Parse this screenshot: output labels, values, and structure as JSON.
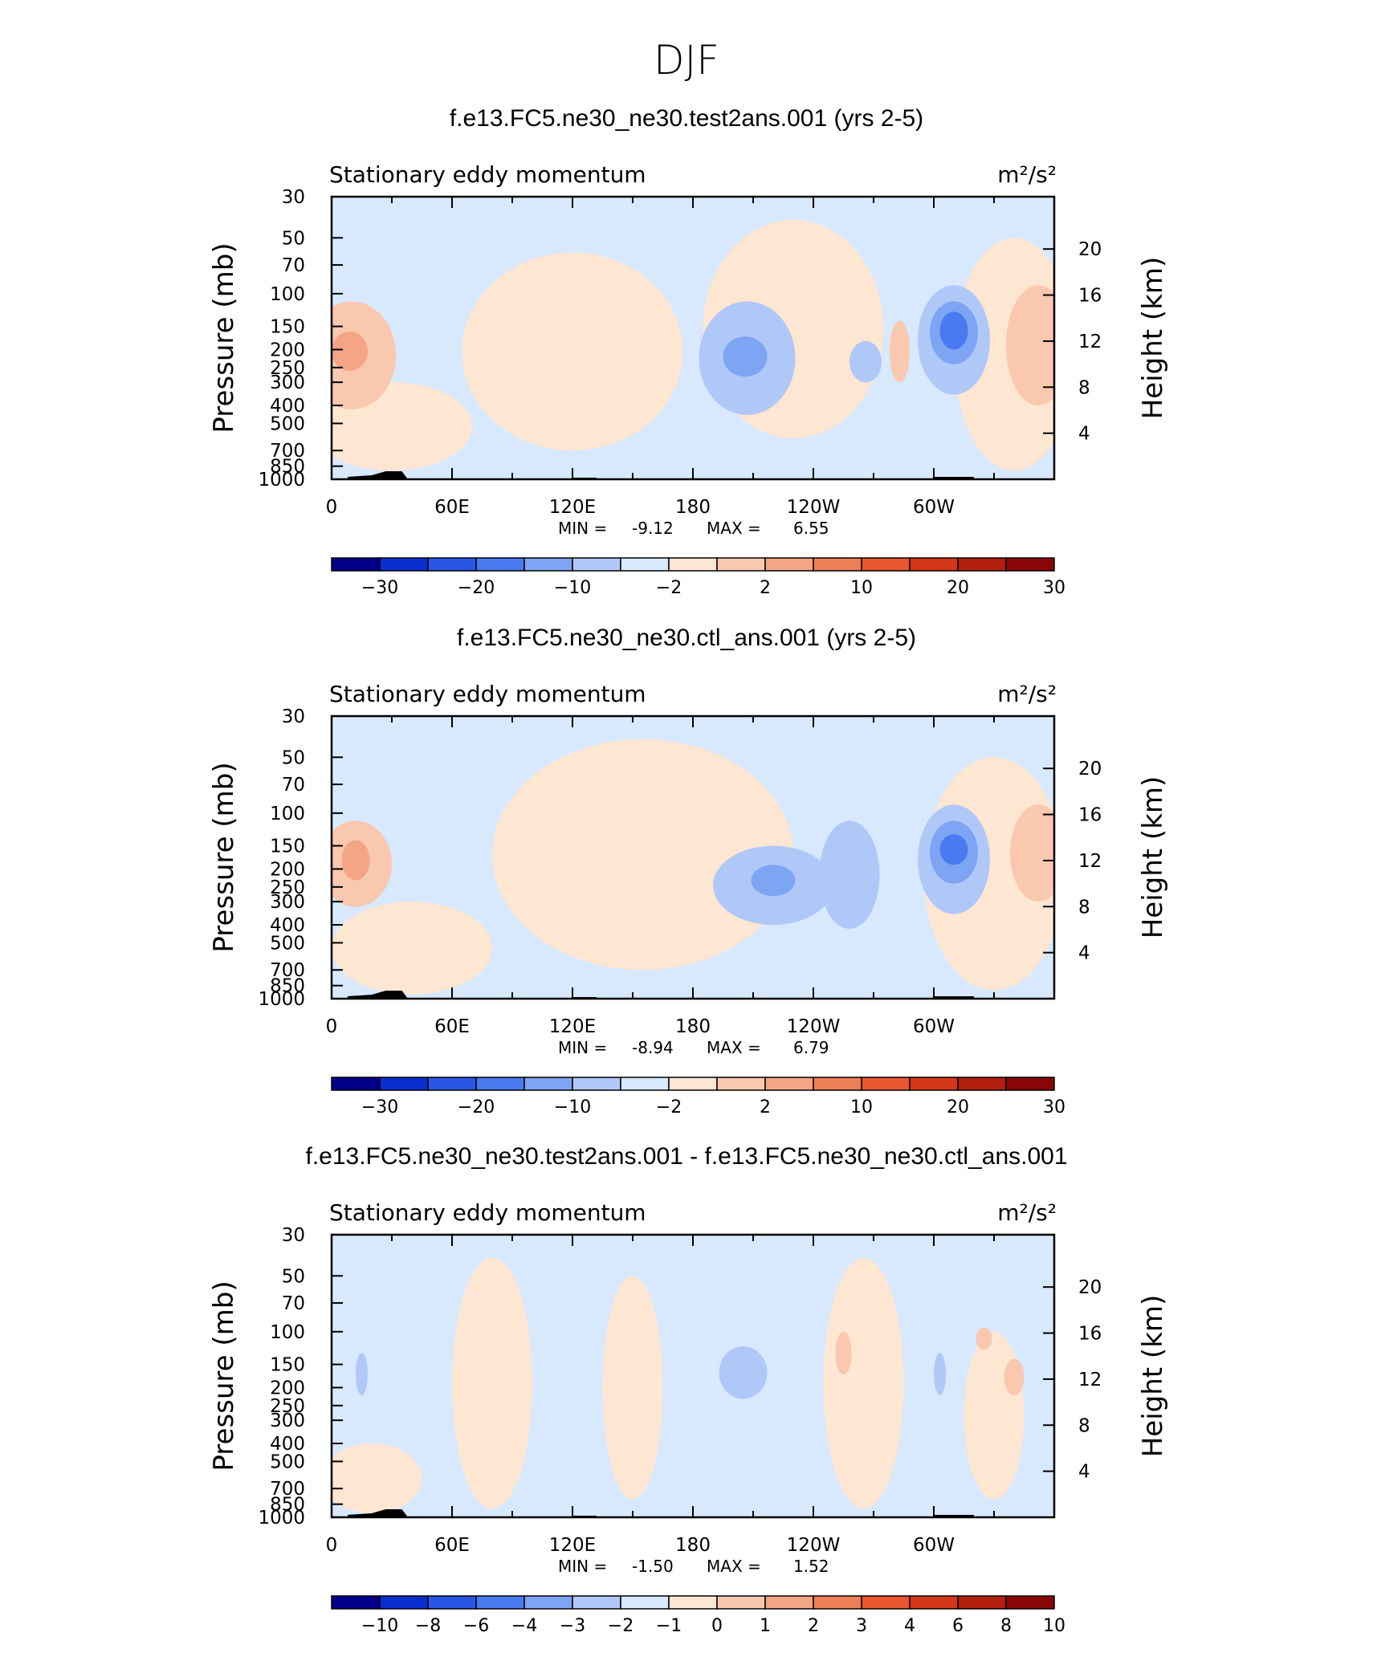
{
  "page": {
    "season": "DJF"
  },
  "chart_data": [
    {
      "type": "heatmap",
      "title": "f.e13.FC5.ne30_ne30.test2ans.001 (yrs 2-5)",
      "left_string": "Stationary eddy momentum",
      "units": "m²/s²",
      "ylabel": "Pressure (mb)",
      "y2label": "Height (km)",
      "x_ticks": [
        "0",
        "60E",
        "120E",
        "180",
        "120W",
        "60W"
      ],
      "y_ticks": [
        "30",
        "50",
        "70",
        "100",
        "150",
        "200",
        "250",
        "300",
        "400",
        "500",
        "700",
        "850",
        "1000"
      ],
      "y2_ticks": [
        "20",
        "16",
        "12",
        "8",
        "4"
      ],
      "min_label": "MIN =",
      "min_value": "-9.12",
      "max_label": "MAX =",
      "max_value": "6.55",
      "colorbar_labels": [
        "−30",
        "−20",
        "−10",
        "−2",
        "2",
        "10",
        "20",
        "30"
      ],
      "colorbar_colors": [
        "#00008a",
        "#0a2fd1",
        "#2a56e8",
        "#4a7af0",
        "#7ea4f4",
        "#b0c8f8",
        "#d8e8fd",
        "#fde6d2",
        "#f9c8ae",
        "#f3a585",
        "#ee7e55",
        "#e9562f",
        "#d63618",
        "#b21f0c",
        "#8a0505"
      ]
    },
    {
      "type": "heatmap",
      "title": "f.e13.FC5.ne30_ne30.ctl_ans.001 (yrs 2-5)",
      "left_string": "Stationary eddy momentum",
      "units": "m²/s²",
      "ylabel": "Pressure (mb)",
      "y2label": "Height (km)",
      "x_ticks": [
        "0",
        "60E",
        "120E",
        "180",
        "120W",
        "60W"
      ],
      "y_ticks": [
        "30",
        "50",
        "70",
        "100",
        "150",
        "200",
        "250",
        "300",
        "400",
        "500",
        "700",
        "850",
        "1000"
      ],
      "y2_ticks": [
        "20",
        "16",
        "12",
        "8",
        "4"
      ],
      "min_label": "MIN =",
      "min_value": "-8.94",
      "max_label": "MAX =",
      "max_value": "6.79",
      "colorbar_labels": [
        "−30",
        "−20",
        "−10",
        "−2",
        "2",
        "10",
        "20",
        "30"
      ],
      "colorbar_colors": [
        "#00008a",
        "#0a2fd1",
        "#2a56e8",
        "#4a7af0",
        "#7ea4f4",
        "#b0c8f8",
        "#d8e8fd",
        "#fde6d2",
        "#f9c8ae",
        "#f3a585",
        "#ee7e55",
        "#e9562f",
        "#d63618",
        "#b21f0c",
        "#8a0505"
      ]
    },
    {
      "type": "heatmap",
      "title": "f.e13.FC5.ne30_ne30.test2ans.001 - f.e13.FC5.ne30_ne30.ctl_ans.001",
      "left_string": "Stationary eddy momentum",
      "units": "m²/s²",
      "ylabel": "Pressure (mb)",
      "y2label": "Height (km)",
      "x_ticks": [
        "0",
        "60E",
        "120E",
        "180",
        "120W",
        "60W"
      ],
      "y_ticks": [
        "30",
        "50",
        "70",
        "100",
        "150",
        "200",
        "250",
        "300",
        "400",
        "500",
        "700",
        "850",
        "1000"
      ],
      "y2_ticks": [
        "20",
        "16",
        "12",
        "8",
        "4"
      ],
      "min_label": "MIN =",
      "min_value": "-1.50",
      "max_label": "MAX =",
      "max_value": "1.52",
      "colorbar_labels": [
        "−10",
        "−8",
        "−6",
        "−4",
        "−3",
        "−2",
        "−1",
        "0",
        "1",
        "2",
        "3",
        "4",
        "6",
        "8",
        "10"
      ],
      "colorbar_colors": [
        "#00008a",
        "#0a2fd1",
        "#2a56e8",
        "#4a7af0",
        "#7ea4f4",
        "#b0c8f8",
        "#d8e8fd",
        "#fde6d2",
        "#f9c8ae",
        "#f3a585",
        "#ee7e55",
        "#e9562f",
        "#d63618",
        "#b21f0c",
        "#8a0505"
      ]
    }
  ]
}
